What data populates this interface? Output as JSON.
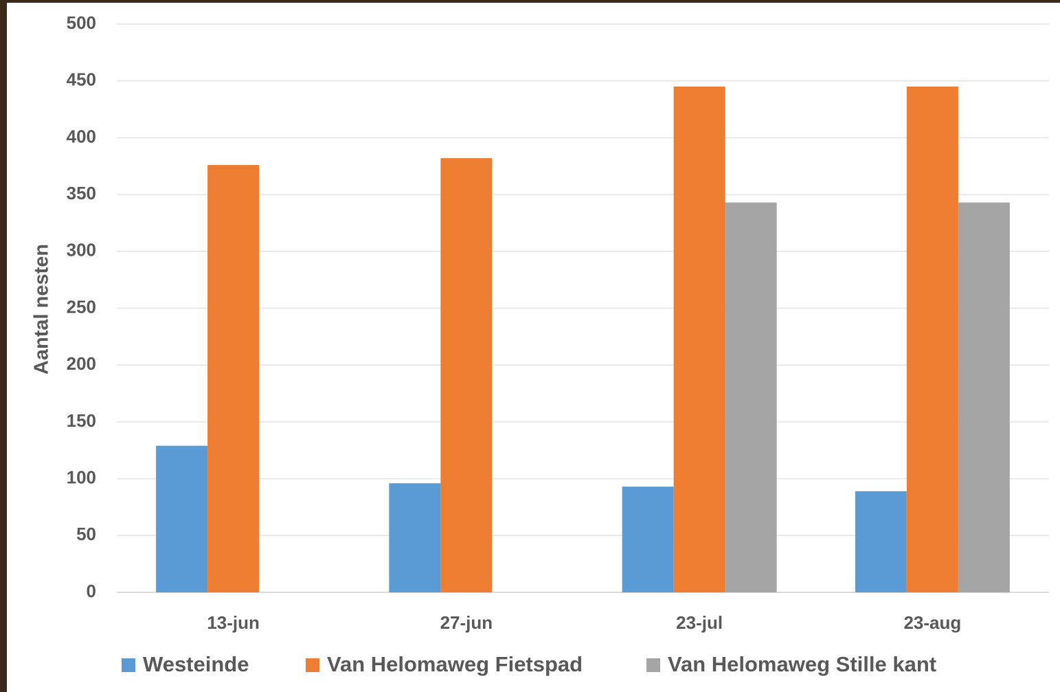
{
  "chart_data": {
    "type": "bar",
    "y_label": "Aantal nesten",
    "categories": [
      "13-jun",
      "27-jun",
      "23-jul",
      "23-aug"
    ],
    "series": [
      {
        "name": "Westeinde",
        "color": "#5b9bd5",
        "values": [
          129,
          96,
          93,
          89
        ]
      },
      {
        "name": "Van Helomaweg Fietspad",
        "color": "#ed7d31",
        "values": [
          376,
          382,
          445,
          445
        ]
      },
      {
        "name": "Van Helomaweg Stille kant",
        "color": "#a5a5a5",
        "values": [
          null,
          null,
          343,
          343
        ]
      }
    ],
    "ylim": [
      0,
      500
    ],
    "yticks": [
      0,
      50,
      100,
      150,
      200,
      250,
      300,
      350,
      400,
      450,
      500
    ],
    "grid": true,
    "legend": "bottom"
  }
}
